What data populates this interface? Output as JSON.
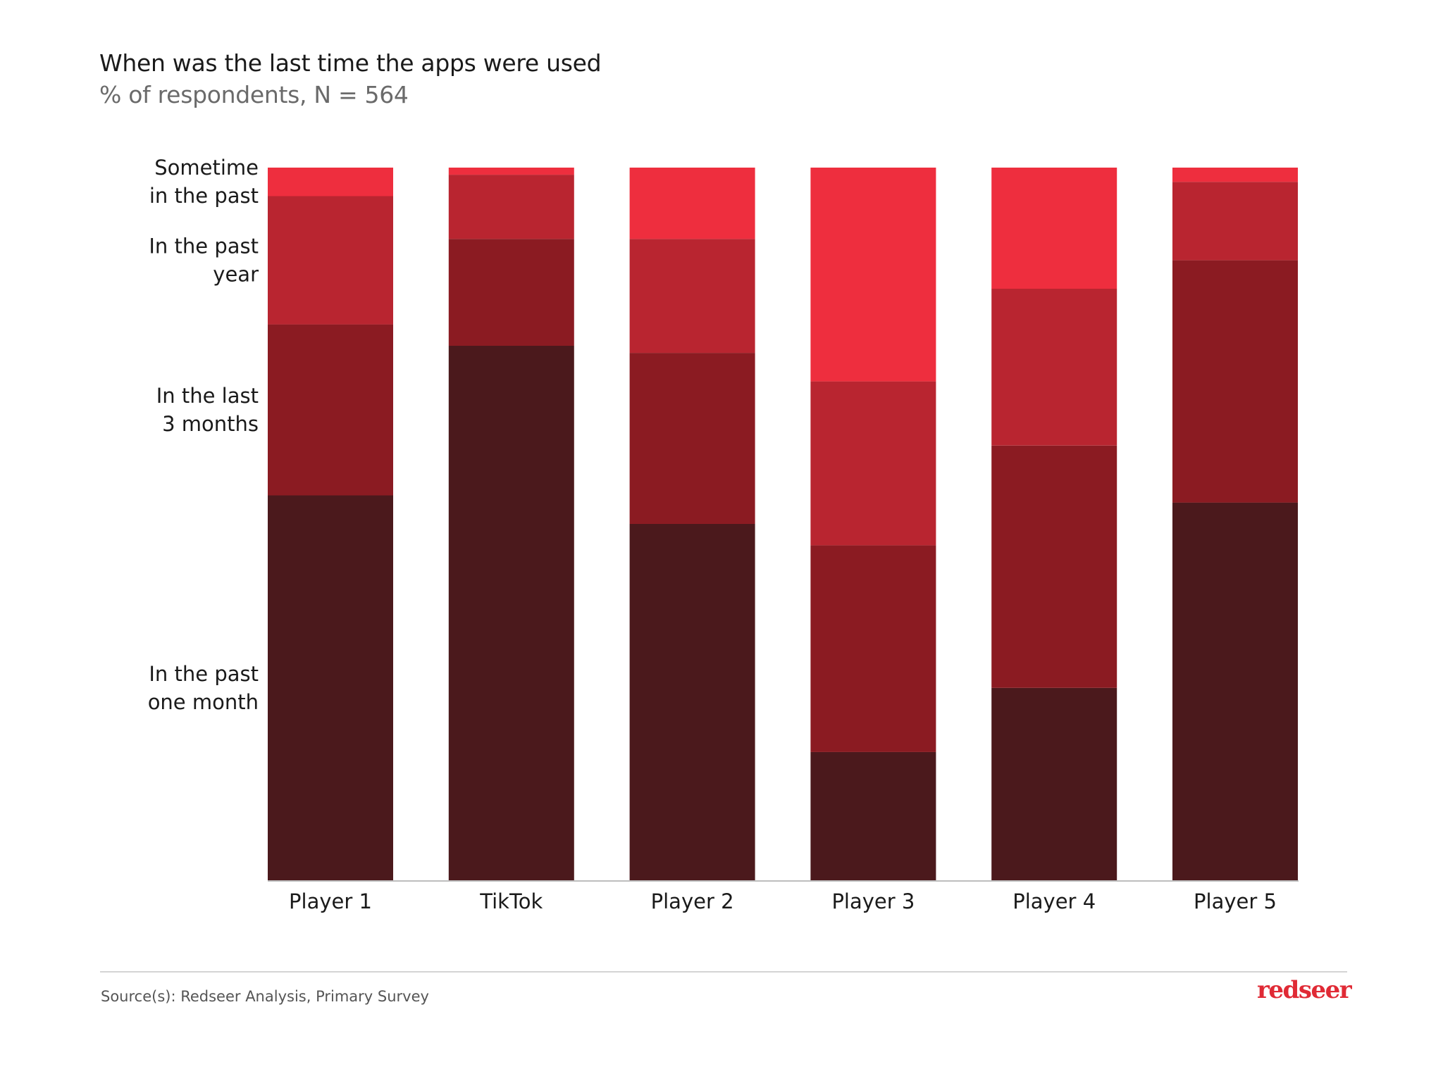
{
  "header": {
    "title": "When was the last time the apps were used",
    "subtitle": "% of respondents, N = 564"
  },
  "footer": {
    "source": "Source(s): Redseer Analysis, Primary Survey",
    "logo": "redseer",
    "logo_color": "#e02a35"
  },
  "chart_data": {
    "type": "bar",
    "stacked": true,
    "normalized_100": true,
    "title": "When was the last time the apps were used",
    "subtitle": "% of respondents, N = 564",
    "xlabel": "",
    "ylabel": "",
    "ylim": [
      0,
      100
    ],
    "grid": false,
    "legend": "left (labels aligned with segments of first bar)",
    "categories": [
      "Player 1",
      "TikTok",
      "Player 2",
      "Player 3",
      "Player 4",
      "Player 5"
    ],
    "series": [
      {
        "name": "In the past one month",
        "label_lines": [
          "In the past",
          "one month"
        ],
        "color": "#4b191c",
        "values": [
          54,
          75,
          50,
          18,
          27,
          53
        ]
      },
      {
        "name": "In the last 3 months",
        "label_lines": [
          "In the last",
          "3 months"
        ],
        "color": "#8b1b22",
        "values": [
          24,
          15,
          24,
          29,
          34,
          34
        ]
      },
      {
        "name": "In the past year",
        "label_lines": [
          "In the past",
          "year"
        ],
        "color": "#b92530",
        "values": [
          18,
          9,
          16,
          23,
          22,
          11
        ]
      },
      {
        "name": "Sometime in the past",
        "label_lines": [
          "Sometime",
          "in the past"
        ],
        "color": "#ee2e3e",
        "values": [
          4,
          1,
          10,
          30,
          17,
          2
        ]
      }
    ]
  }
}
